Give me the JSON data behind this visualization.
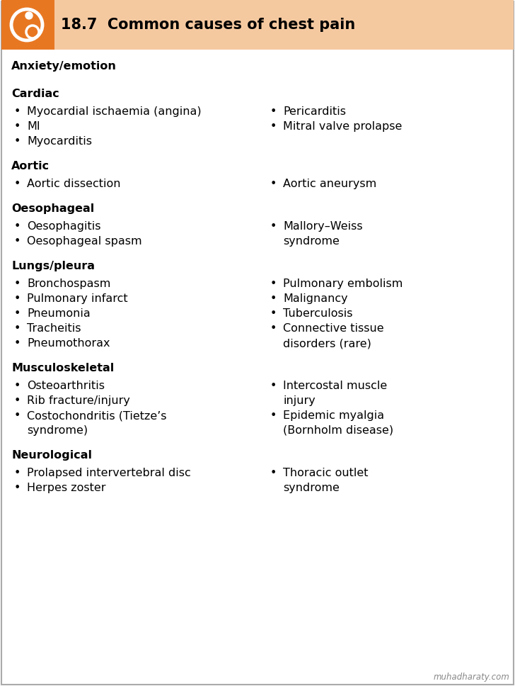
{
  "title": "18.7  Common causes of chest pain",
  "header_bg": "#F5C9A0",
  "header_orange": "#E87722",
  "body_bg": "#FFFFFF",
  "border_color": "#AAAAAA",
  "title_fontsize": 15,
  "body_fontsize": 11.5,
  "text_color": "#000000",
  "watermark": "muhadharaty.com",
  "sections": [
    {
      "heading": "Anxiety/emotion",
      "left_items": [],
      "right_items": []
    },
    {
      "heading": "Cardiac",
      "left_items": [
        "Myocardial ischaemia (angina)",
        "MI",
        "Myocarditis"
      ],
      "right_items": [
        "Pericarditis",
        "Mitral valve prolapse"
      ]
    },
    {
      "heading": "Aortic",
      "left_items": [
        "Aortic dissection"
      ],
      "right_items": [
        "Aortic aneurysm"
      ]
    },
    {
      "heading": "Oesophageal",
      "left_items": [
        "Oesophagitis",
        "Oesophageal spasm"
      ],
      "right_items": [
        "Mallory–Weiss\nsyndrome"
      ]
    },
    {
      "heading": "Lungs/pleura",
      "left_items": [
        "Bronchospasm",
        "Pulmonary infarct",
        "Pneumonia",
        "Tracheitis",
        "Pneumothorax"
      ],
      "right_items": [
        "Pulmonary embolism",
        "Malignancy",
        "Tuberculosis",
        "Connective tissue\ndisorders (rare)"
      ]
    },
    {
      "heading": "Musculoskeletal",
      "left_items": [
        "Osteoarthritis",
        "Rib fracture/injury",
        "Costochondritis (Tietze’s\nsyndrome)"
      ],
      "right_items": [
        "Intercostal muscle\ninjury",
        "Epidemic myalgia\n(Bornholm disease)"
      ]
    },
    {
      "heading": "Neurological",
      "left_items": [
        "Prolapsed intervertebral disc",
        "Herpes zoster"
      ],
      "right_items": [
        "Thoracic outlet\nsyndrome"
      ]
    }
  ]
}
